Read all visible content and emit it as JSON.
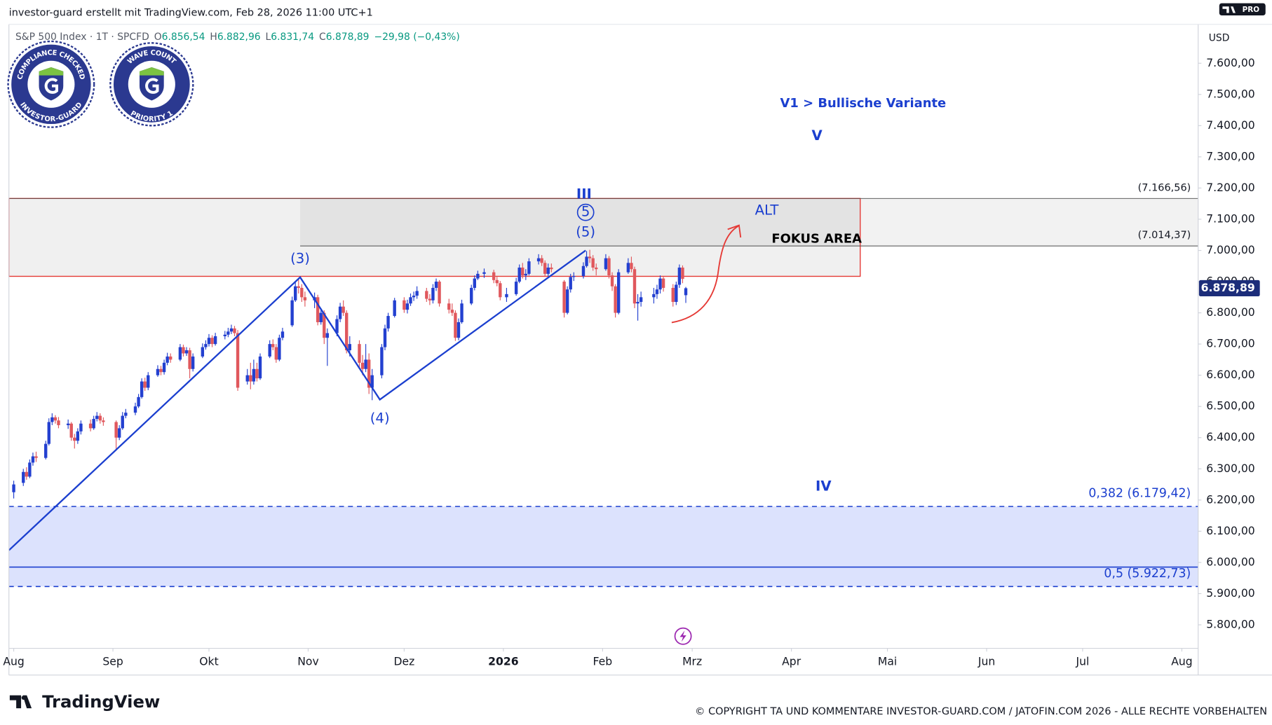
{
  "chart_data": {
    "type": "candlestick",
    "top_note": "investor-guard erstellt mit TradingView.com, Feb 28, 2026 11:00 UTC+1",
    "legend": {
      "symbol": "S&P 500 Index · 1T · SPCFD",
      "fields": [
        {
          "key": "O",
          "value": "6.856,54"
        },
        {
          "key": "H",
          "value": "6.882,96"
        },
        {
          "key": "L",
          "value": "6.831,74"
        },
        {
          "key": "C",
          "value": "6.878,89"
        }
      ],
      "change": "−29,98 (−0,43%)"
    },
    "badges": [
      {
        "top": "COMPLIANCE CHECKED",
        "bottom": "INVESTOR-GUARD"
      },
      {
        "top": "WAVE COUNT",
        "bottom": "PRIORITY 1"
      }
    ],
    "currency": "USD",
    "plan": "PRO",
    "brand": "TradingView",
    "copyright": "© COPYRIGHT TA UND KOMMENTARE INVESTOR-GUARD.COM / JATOFIN.COM 2026 - ALLE RECHTE VORBEHALTEN",
    "up_color": "#2340d0",
    "down_color": "#e0585d",
    "annotation_color": "#1b3fcf",
    "grid": false,
    "xlim": [
      0,
      371.6
    ],
    "ylim": [
      5724.7,
      7724.7
    ],
    "xticks": [
      {
        "value": 1.5,
        "label": "Aug"
      },
      {
        "value": 32.5,
        "label": "Sep"
      },
      {
        "value": 62.5,
        "label": "Okt"
      },
      {
        "value": 93.5,
        "label": "Nov"
      },
      {
        "value": 123.5,
        "label": "Dez"
      },
      {
        "value": 154.5,
        "label": "2026"
      },
      {
        "value": 185.5,
        "label": "Feb"
      },
      {
        "value": 213.5,
        "label": "Mrz"
      },
      {
        "value": 244.5,
        "label": "Apr"
      },
      {
        "value": 274.5,
        "label": "Mai"
      },
      {
        "value": 305.5,
        "label": "Jun"
      },
      {
        "value": 335.5,
        "label": "Jul"
      },
      {
        "value": 366.5,
        "label": "Aug"
      }
    ],
    "yticks": [
      {
        "value": 5800,
        "label": "5.800,00"
      },
      {
        "value": 5900,
        "label": "5.900,00"
      },
      {
        "value": 6000,
        "label": "6.000,00"
      },
      {
        "value": 6100,
        "label": "6.100,00"
      },
      {
        "value": 6200,
        "label": "6.200,00"
      },
      {
        "value": 6300,
        "label": "6.300,00"
      },
      {
        "value": 6400,
        "label": "6.400,00"
      },
      {
        "value": 6500,
        "label": "6.500,00"
      },
      {
        "value": 6600,
        "label": "6.600,00"
      },
      {
        "value": 6700,
        "label": "6.700,00"
      },
      {
        "value": 6800,
        "label": "6.800,00"
      },
      {
        "value": 6900,
        "label": "6.900,00"
      },
      {
        "value": 7000,
        "label": "7.000,00"
      },
      {
        "value": 7100,
        "label": "7.100,00"
      },
      {
        "value": 7200,
        "label": "7.200,00"
      },
      {
        "value": 7300,
        "label": "7.300,00"
      },
      {
        "value": 7400,
        "label": "7.400,00"
      },
      {
        "value": 7500,
        "label": "7.500,00"
      },
      {
        "value": 7600,
        "label": "7.600,00"
      }
    ],
    "x": [
      1.5,
      4.5,
      5.5,
      6.5,
      7.5,
      8.5,
      11.5,
      12.5,
      13.5,
      14.5,
      15.5,
      18.5,
      19.5,
      20.5,
      21.5,
      22.5,
      25.5,
      26.5,
      27.5,
      28.5,
      29.5,
      33.5,
      34.5,
      35.5,
      36.5,
      39.5,
      40.5,
      41.5,
      42.5,
      43.5,
      46.5,
      47.5,
      48.5,
      49.5,
      50.5,
      53.5,
      54.5,
      55.5,
      56.5,
      57.5,
      60.5,
      61.5,
      62.5,
      63.5,
      64.5,
      67.5,
      68.5,
      69.5,
      70.5,
      71.5,
      74.5,
      75.5,
      76.5,
      77.5,
      78.5,
      81.5,
      82.5,
      83.5,
      84.5,
      85.5,
      88.5,
      89.5,
      90.5,
      91.5,
      92.5,
      95.5,
      96.5,
      97.5,
      98.5,
      99.5,
      102.5,
      103.5,
      104.5,
      105.5,
      106.5,
      109.5,
      110.5,
      111.5,
      112.5,
      113.5,
      116.5,
      117.5,
      118.5,
      120.5,
      123.5,
      124.5,
      125.5,
      126.5,
      127.5,
      130.5,
      131.5,
      132.5,
      133.5,
      134.5,
      137.5,
      138.5,
      139.5,
      140.5,
      141.5,
      144.5,
      145.5,
      146.5,
      148.5,
      151.5,
      152.5,
      153.5,
      155.5,
      158.5,
      159.5,
      160.5,
      161.5,
      162.5,
      165.5,
      166.5,
      167.5,
      168.5,
      169.5,
      173.5,
      174.5,
      175.5,
      176.5,
      179.5,
      180.5,
      181.5,
      182.5,
      183.5,
      186.5,
      187.5,
      188.5,
      189.5,
      190.5,
      193.5,
      194.5,
      195.5,
      196.5,
      197.5,
      201.5,
      202.5,
      203.5,
      204.5,
      207.5,
      208.5,
      209.5,
      210.5,
      211.5
    ],
    "open": [
      6225,
      6255,
      6290,
      6275,
      6320,
      6340,
      6335,
      6380,
      6450,
      6465,
      6455,
      6440,
      6445,
      6400,
      6390,
      6420,
      6445,
      6430,
      6460,
      6470,
      6455,
      6450,
      6400,
      6430,
      6470,
      6480,
      6500,
      6530,
      6580,
      6560,
      6600,
      6620,
      6610,
      6640,
      6660,
      6650,
      6690,
      6670,
      6680,
      6620,
      6660,
      6690,
      6700,
      6720,
      6700,
      6725,
      6730,
      6740,
      6750,
      6735,
      6580,
      6600,
      6580,
      6620,
      6590,
      6660,
      6700,
      6690,
      6650,
      6720,
      6760,
      6840,
      6885,
      6880,
      6850,
      6840,
      6850,
      6770,
      6800,
      6720,
      6735,
      6780,
      6820,
      6800,
      6680,
      6700,
      6640,
      6620,
      6650,
      6560,
      6600,
      6690,
      6750,
      6790,
      6840,
      6810,
      6830,
      6850,
      6855,
      6870,
      6845,
      6840,
      6880,
      6900,
      6830,
      6810,
      6800,
      6720,
      6770,
      6830,
      6880,
      6910,
      6925,
      6930,
      6905,
      6895,
      6850,
      6860,
      6900,
      6945,
      6920,
      6925,
      6965,
      6975,
      6960,
      6925,
      6945,
      6900,
      6800,
      6875,
      6915,
      6918,
      6950,
      6980,
      6975,
      6945,
      6940,
      6975,
      6920,
      6885,
      6800,
      6930,
      6960,
      6940,
      6830,
      6835,
      6850,
      6860,
      6875,
      6910,
      6880,
      6835,
      6890,
      6945,
      6856.54
    ],
    "high": [
      6262,
      6300,
      6305,
      6330,
      6352,
      6355,
      6390,
      6462,
      6478,
      6472,
      6466,
      6458,
      6450,
      6412,
      6430,
      6455,
      6458,
      6470,
      6482,
      6478,
      6465,
      6455,
      6440,
      6482,
      6492,
      6512,
      6540,
      6590,
      6592,
      6610,
      6632,
      6630,
      6650,
      6672,
      6670,
      6700,
      6698,
      6690,
      6688,
      6670,
      6702,
      6712,
      6732,
      6728,
      6736,
      6742,
      6752,
      6762,
      6758,
      6745,
      6620,
      6640,
      6650,
      6640,
      6670,
      6712,
      6715,
      6700,
      6730,
      6752,
      6852,
      6900,
      6912,
      6892,
      6868,
      6865,
      6858,
      6815,
      6808,
      6750,
      6792,
      6832,
      6840,
      6808,
      6725,
      6712,
      6665,
      6700,
      6670,
      6620,
      6700,
      6762,
      6800,
      6848,
      6850,
      6842,
      6862,
      6868,
      6885,
      6880,
      6860,
      6892,
      6910,
      6905,
      6845,
      6830,
      6808,
      6782,
      6842,
      6890,
      6920,
      6935,
      6942,
      6938,
      6915,
      6902,
      6880,
      6912,
      6955,
      6960,
      6940,
      6975,
      6988,
      6985,
      6968,
      6958,
      6958,
      6905,
      6885,
      6925,
      6930,
      6962,
      6998,
      7002,
      6985,
      6958,
      6988,
      6982,
      6930,
      6892,
      6940,
      6975,
      6980,
      6948,
      6860,
      6868,
      6880,
      6890,
      6920,
      6915,
      6892,
      6900,
      6955,
      6952,
      6882.96
    ],
    "low": [
      6205,
      6245,
      6265,
      6270,
      6310,
      6322,
      6330,
      6375,
      6440,
      6445,
      6430,
      6428,
      6390,
      6365,
      6380,
      6410,
      6420,
      6425,
      6452,
      6445,
      6438,
      6360,
      6392,
      6425,
      6462,
      6472,
      6495,
      6525,
      6550,
      6552,
      6595,
      6600,
      6602,
      6632,
      6640,
      6645,
      6660,
      6662,
      6590,
      6612,
      6655,
      6682,
      6692,
      6690,
      6695,
      6715,
      6722,
      6732,
      6725,
      6550,
      6570,
      6555,
      6570,
      6580,
      6585,
      6655,
      6680,
      6640,
      6645,
      6712,
      6755,
      6835,
      6862,
      6835,
      6820,
      6815,
      6760,
      6762,
      6700,
      6630,
      6725,
      6770,
      6790,
      6670,
      6660,
      6620,
      6600,
      6610,
      6540,
      6520,
      6590,
      6680,
      6740,
      6785,
      6800,
      6798,
      6822,
      6838,
      6845,
      6835,
      6825,
      6830,
      6870,
      6820,
      6798,
      6790,
      6710,
      6712,
      6765,
      6825,
      6872,
      6905,
      6912,
      6895,
      6885,
      6840,
      6835,
      6855,
      6895,
      6910,
      6905,
      6920,
      6955,
      6950,
      6915,
      6918,
      6930,
      6785,
      6795,
      6865,
      6902,
      6910,
      6945,
      6960,
      6935,
      6920,
      6935,
      6910,
      6870,
      6785,
      6795,
      6925,
      6930,
      6815,
      6775,
      6820,
      6830,
      6845,
      6862,
      6868,
      6820,
      6825,
      6880,
      6895,
      6831.74
    ],
    "close": [
      6250,
      6290,
      6275,
      6320,
      6340,
      6335,
      6380,
      6450,
      6465,
      6455,
      6440,
      6445,
      6400,
      6390,
      6420,
      6445,
      6430,
      6460,
      6470,
      6455,
      6450,
      6400,
      6430,
      6470,
      6480,
      6500,
      6530,
      6580,
      6560,
      6600,
      6620,
      6610,
      6640,
      6660,
      6650,
      6690,
      6670,
      6680,
      6620,
      6660,
      6690,
      6700,
      6720,
      6700,
      6725,
      6730,
      6740,
      6750,
      6735,
      6560,
      6600,
      6580,
      6620,
      6590,
      6660,
      6700,
      6690,
      6650,
      6720,
      6740,
      6840,
      6885,
      6880,
      6850,
      6840,
      6850,
      6770,
      6800,
      6720,
      6735,
      6780,
      6820,
      6800,
      6680,
      6700,
      6640,
      6620,
      6650,
      6560,
      6600,
      6690,
      6750,
      6790,
      6840,
      6810,
      6830,
      6850,
      6855,
      6870,
      6845,
      6840,
      6880,
      6900,
      6830,
      6810,
      6800,
      6720,
      6770,
      6830,
      6880,
      6910,
      6925,
      6930,
      6905,
      6895,
      6850,
      6860,
      6900,
      6945,
      6920,
      6925,
      6965,
      6975,
      6960,
      6925,
      6945,
      6940,
      6800,
      6875,
      6915,
      6918,
      6950,
      6980,
      6975,
      6945,
      6940,
      6975,
      6920,
      6885,
      6800,
      6930,
      6960,
      6940,
      6830,
      6835,
      6850,
      6860,
      6875,
      6910,
      6880,
      6835,
      6890,
      6945,
      6908.87,
      6878.89
    ],
    "last_price": {
      "value": 6878.89,
      "label": "6.878,89"
    },
    "range_box": {
      "top": 7166.56,
      "bottom": 7014.37,
      "from": 91,
      "to": 371.6
    },
    "focus_area": {
      "top": 7166.56,
      "bottom": 6917,
      "from": 0,
      "to": 266
    },
    "price_lines": [
      {
        "value": 7166.56,
        "label": "(7.166,56)",
        "from": 0
      },
      {
        "value": 7014.37,
        "label": "(7.014,37)",
        "from": 91
      }
    ],
    "fib_levels": [
      {
        "value": 6179.42,
        "label": "0,382 (6.179,42)"
      },
      {
        "value": 5922.73,
        "label": "0,5 (5.922,73)"
      }
    ],
    "fib_mid_line": 5985,
    "wave": {
      "x": [
        0,
        91,
        115.9,
        180.2
      ],
      "y": [
        6039,
        6914,
        6522,
        7000
      ]
    },
    "annotations": [
      {
        "text": "V1 > Bullische Variante",
        "x": 266.9,
        "y": 7470,
        "weight": "bold"
      },
      {
        "text": "V",
        "x": 252.5,
        "y": 7366,
        "weight": "bold"
      },
      {
        "text": "III",
        "x": 179.7,
        "y": 7179,
        "weight": "bold"
      },
      {
        "text": "5",
        "x": 180.2,
        "y": 7122,
        "shape": "circle"
      },
      {
        "text": "(5)",
        "x": 180.2,
        "y": 7057
      },
      {
        "text": "(3)",
        "x": 91,
        "y": 6972
      },
      {
        "text": "(4)",
        "x": 115.9,
        "y": 6460
      },
      {
        "text": "ALT",
        "x": 236.8,
        "y": 7127
      },
      {
        "text": "FOKUS AREA",
        "x": 252.4,
        "y": 7036,
        "weight": "bold",
        "color": "#000000"
      },
      {
        "text": "IV",
        "x": 254.5,
        "y": 6242,
        "weight": "bold"
      }
    ]
  }
}
